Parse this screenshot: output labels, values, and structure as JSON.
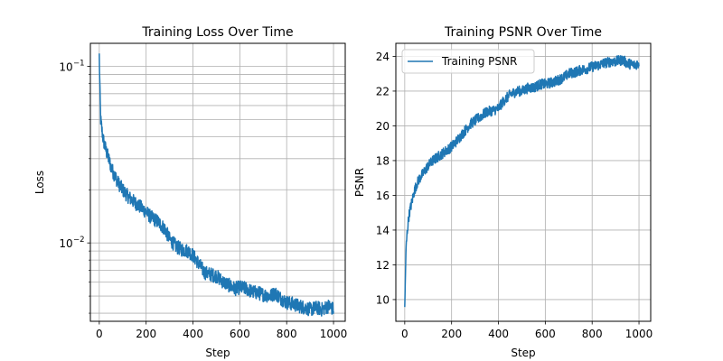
{
  "line_color": "#1f77b4",
  "grid_color": "#b0b0b0",
  "chart_data": [
    {
      "type": "line",
      "title": "Training Loss Over Time",
      "xlabel": "Step",
      "ylabel": "Loss",
      "yscale": "log",
      "xlim": [
        -38,
        1050
      ],
      "ylim": [
        0.0036,
        0.135
      ],
      "xticks": [
        0,
        200,
        400,
        600,
        800,
        1000
      ],
      "xtick_labels": [
        "0",
        "200",
        "400",
        "600",
        "800",
        "1000"
      ],
      "yticks_major": [
        {
          "value": 0.1,
          "base": "10",
          "exp": "−1"
        },
        {
          "value": 0.01,
          "base": "10",
          "exp": "−2"
        }
      ],
      "grid": true,
      "legend": null,
      "series": [
        {
          "name": "Training Loss",
          "x": [
            0,
            3,
            6,
            10,
            15,
            20,
            30,
            40,
            50,
            60,
            70,
            80,
            100,
            120,
            150,
            180,
            200,
            220,
            250,
            280,
            300,
            330,
            350,
            380,
            400,
            420,
            450,
            480,
            500,
            530,
            550,
            580,
            600,
            630,
            650,
            680,
            700,
            730,
            750,
            780,
            800,
            830,
            850,
            880,
            900,
            930,
            950,
            980,
            1000
          ],
          "y": [
            0.115,
            0.07,
            0.05,
            0.045,
            0.04,
            0.037,
            0.033,
            0.03,
            0.027,
            0.025,
            0.0235,
            0.022,
            0.02,
            0.0185,
            0.017,
            0.0158,
            0.015,
            0.014,
            0.0132,
            0.012,
            0.0105,
            0.0095,
            0.0092,
            0.009,
            0.0085,
            0.0078,
            0.0068,
            0.0066,
            0.0065,
            0.006,
            0.0058,
            0.0055,
            0.0056,
            0.0055,
            0.0053,
            0.0052,
            0.0051,
            0.005,
            0.0052,
            0.0048,
            0.0046,
            0.0045,
            0.0044,
            0.0043,
            0.0042,
            0.0043,
            0.0042,
            0.0044,
            0.0042
          ],
          "noise": 0.08
        }
      ]
    },
    {
      "type": "line",
      "title": "Training PSNR Over Time",
      "xlabel": "Step",
      "ylabel": "PSNR",
      "yscale": "linear",
      "xlim": [
        -38,
        1050
      ],
      "ylim": [
        8.75,
        24.75
      ],
      "xticks": [
        0,
        200,
        400,
        600,
        800,
        1000
      ],
      "xtick_labels": [
        "0",
        "200",
        "400",
        "600",
        "800",
        "1000"
      ],
      "yticks": [
        10,
        12,
        14,
        16,
        18,
        20,
        22,
        24
      ],
      "ytick_labels": [
        "10",
        "12",
        "14",
        "16",
        "18",
        "20",
        "22",
        "24"
      ],
      "grid": true,
      "legend": "upper left",
      "series": [
        {
          "name": "Training PSNR",
          "x": [
            0,
            3,
            6,
            10,
            15,
            20,
            30,
            40,
            50,
            60,
            70,
            80,
            100,
            120,
            150,
            180,
            200,
            220,
            250,
            280,
            300,
            330,
            350,
            380,
            400,
            420,
            450,
            480,
            500,
            530,
            550,
            580,
            600,
            630,
            650,
            680,
            700,
            730,
            750,
            780,
            800,
            830,
            850,
            880,
            900,
            930,
            950,
            980,
            1000
          ],
          "y": [
            9.4,
            11.5,
            13,
            13.8,
            14.5,
            15.0,
            15.6,
            16.2,
            16.6,
            16.9,
            17.1,
            17.3,
            17.7,
            18.0,
            18.3,
            18.6,
            18.8,
            19.1,
            19.6,
            20.1,
            20.3,
            20.6,
            20.8,
            20.9,
            21.0,
            21.4,
            21.8,
            22.0,
            22.0,
            22.2,
            22.2,
            22.4,
            22.4,
            22.5,
            22.6,
            22.8,
            23.0,
            23.1,
            23.2,
            23.3,
            23.4,
            23.5,
            23.6,
            23.7,
            23.7,
            23.8,
            23.6,
            23.5,
            23.6
          ],
          "noise": 0.3
        }
      ]
    }
  ]
}
